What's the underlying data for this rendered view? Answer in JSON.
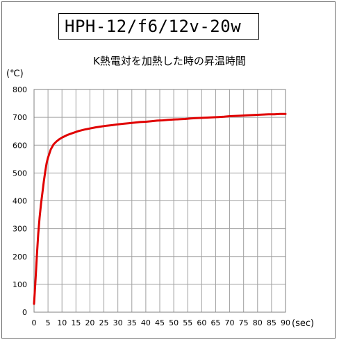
{
  "box_title": "HPH-12/f6/12v-20w",
  "chart_data": {
    "type": "line",
    "title": "K熱電対を加熱した時の昇温時間",
    "ylabel": "(℃)",
    "xlabel": "(sec)",
    "xlim": [
      0,
      90
    ],
    "ylim": [
      0,
      800
    ],
    "x_ticks": [
      "0",
      "5",
      "10",
      "15",
      "20",
      "25",
      "30",
      "35",
      "40",
      "45",
      "50",
      "55",
      "60",
      "65",
      "70",
      "75",
      "80",
      "85",
      "90"
    ],
    "y_ticks": [
      "0",
      "100",
      "200",
      "300",
      "400",
      "500",
      "600",
      "700",
      "800"
    ],
    "grid": true,
    "line_color": "#e00000",
    "series": [
      {
        "x": [
          0,
          0.5,
          1,
          1.5,
          2,
          2.5,
          3,
          3.5,
          4,
          4.5,
          5,
          6,
          7,
          8,
          9,
          10,
          12,
          14,
          16,
          18,
          20,
          22,
          24,
          26,
          28,
          30,
          32,
          34,
          36,
          38,
          40,
          42,
          44,
          46,
          48,
          50,
          52,
          54,
          56,
          58,
          60,
          62,
          64,
          66,
          68,
          70,
          72,
          74,
          76,
          78,
          80,
          82,
          84,
          86,
          88,
          90
        ],
        "y": [
          30,
          110,
          200,
          280,
          340,
          390,
          430,
          470,
          505,
          535,
          555,
          585,
          603,
          613,
          621,
          627,
          637,
          644,
          651,
          656,
          660,
          664,
          667,
          670,
          672,
          675,
          677,
          679,
          681,
          683,
          684,
          686,
          688,
          689,
          691,
          692,
          693,
          694,
          696,
          697,
          698,
          699,
          700,
          701,
          702,
          704,
          705,
          706,
          707,
          708,
          709,
          710,
          711,
          711,
          712,
          712
        ]
      }
    ]
  }
}
